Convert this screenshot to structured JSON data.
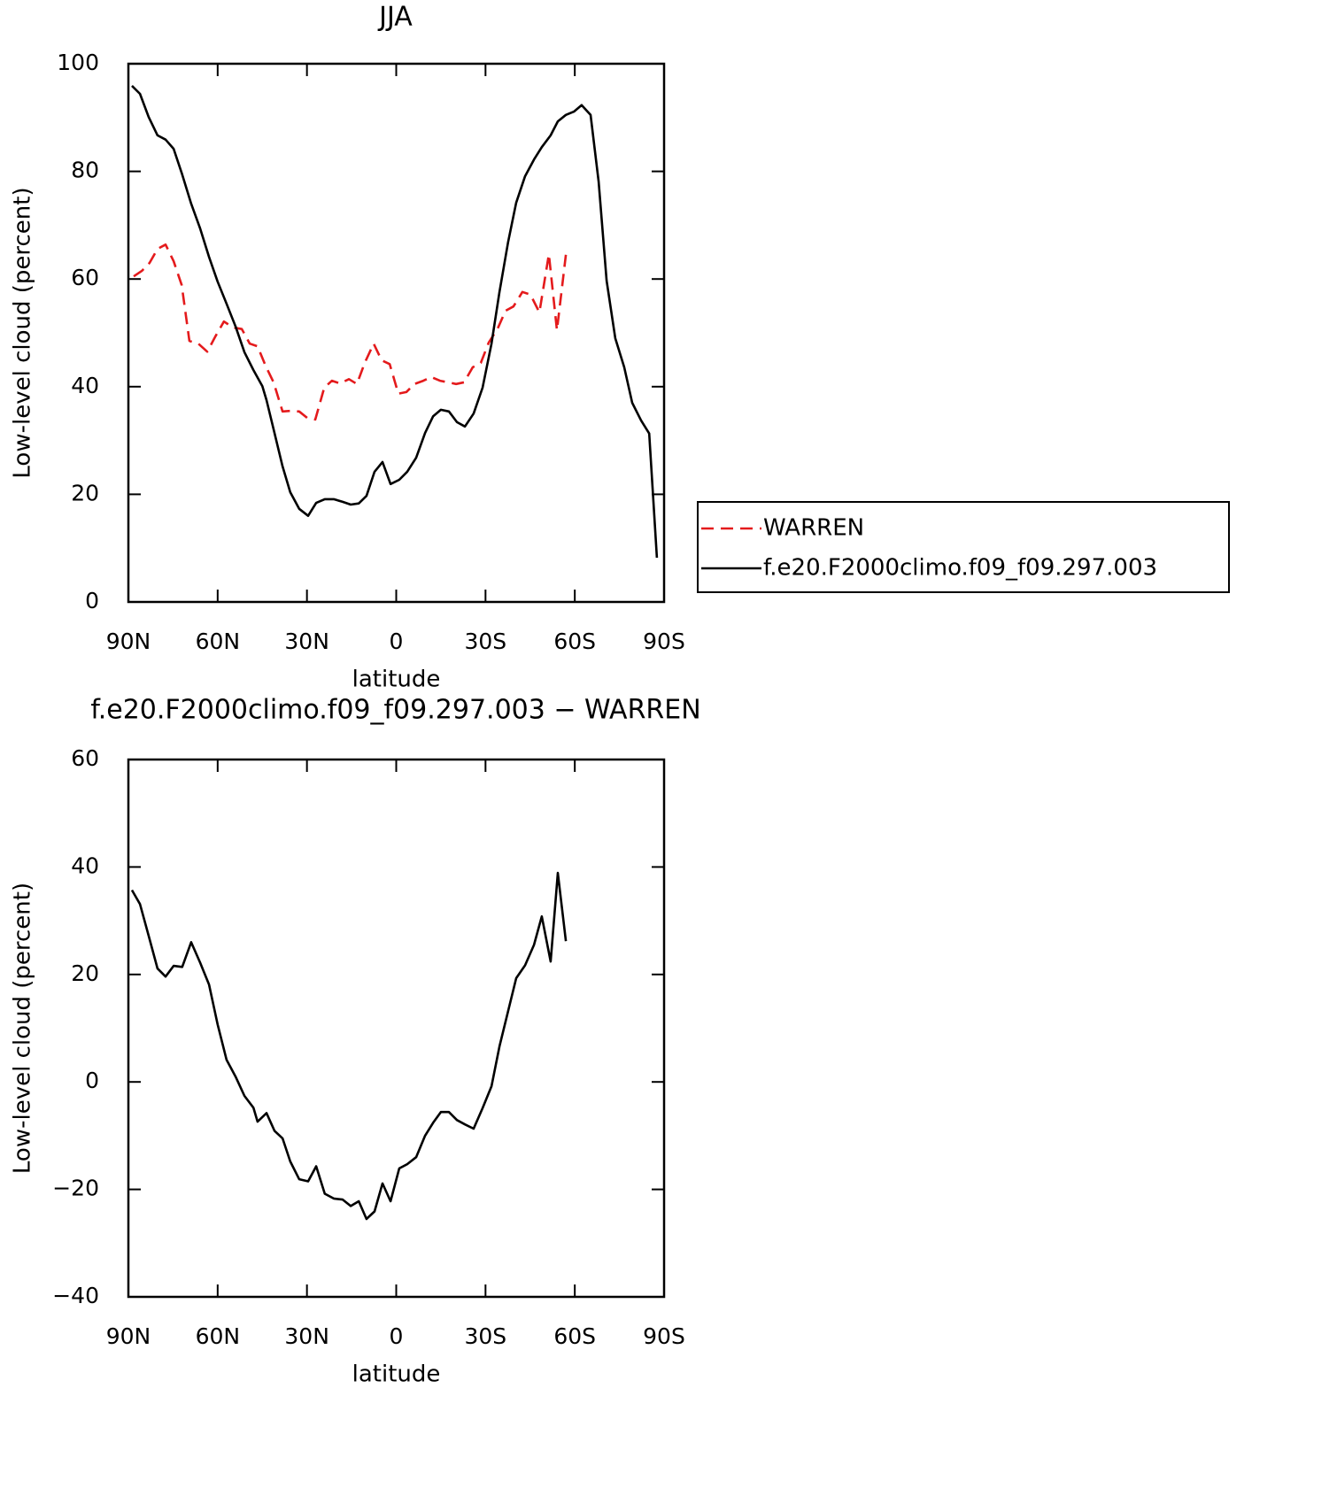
{
  "chart_data": [
    {
      "type": "line",
      "title": "JJA",
      "x_label": "latitude",
      "y_label": "Low-level cloud (percent)",
      "xlim": [
        90,
        -90
      ],
      "xticks": [
        {
          "value": 90,
          "label": "90N"
        },
        {
          "value": 60,
          "label": "60N"
        },
        {
          "value": 30,
          "label": "30N"
        },
        0,
        {
          "value": -30,
          "label": "30S"
        },
        {
          "value": -60,
          "label": "60S"
        },
        {
          "value": -90,
          "label": "90S"
        }
      ],
      "ylim": [
        0,
        100
      ],
      "yticks": [
        0,
        20,
        40,
        60,
        80,
        100
      ],
      "legend": "right",
      "series": [
        {
          "name": "WARREN",
          "color": "#e41a1c",
          "dashed": true,
          "x": [
            88.2,
            85.5,
            82.9,
            80.2,
            77.5,
            74.8,
            72.1,
            69.5,
            66.5,
            63.5,
            60.8,
            57.9,
            54.9,
            51.9,
            49.2,
            46.6,
            43.9,
            41.2,
            38.2,
            35.6,
            32.6,
            29.9,
            27.2,
            24.2,
            21.6,
            18.9,
            15.9,
            13.2,
            10.6,
            7.6,
            4.9,
            2.2,
            -0.7,
            -3.4,
            -6.1,
            -9.1,
            -11.8,
            -14.7,
            -17.4,
            -20.1,
            -22.8,
            -25.7,
            -28.4,
            -31.1,
            -34.1,
            -36.7,
            -39.4,
            -42.4,
            -45.1,
            -48.1,
            -51.3,
            -54.0,
            -57.0
          ],
          "values": [
            60.5,
            61.5,
            63.0,
            65.6,
            66.4,
            63.3,
            58.9,
            48.5,
            48.0,
            46.5,
            49.3,
            52.1,
            51.0,
            50.7,
            48.0,
            47.5,
            43.9,
            40.8,
            35.4,
            35.5,
            35.4,
            34.2,
            33.9,
            39.8,
            41.1,
            40.6,
            41.4,
            40.5,
            44.4,
            48.0,
            44.9,
            44.2,
            38.7,
            39.0,
            40.5,
            41.1,
            41.8,
            41.1,
            40.8,
            40.5,
            40.8,
            43.6,
            44.4,
            48.2,
            50.8,
            54.1,
            54.9,
            57.6,
            57.1,
            53.8,
            64.6,
            50.5,
            64.5
          ]
        },
        {
          "name": "f.e20.F2000climo.f09_f09.297.003",
          "color": "#000000",
          "dashed": false,
          "x": [
            88.8,
            86.1,
            83.2,
            80.2,
            77.5,
            74.8,
            71.9,
            68.9,
            65.9,
            62.9,
            60.0,
            57.0,
            54.0,
            51.0,
            48.0,
            45.0,
            43.6,
            40.9,
            38.2,
            35.6,
            32.6,
            29.6,
            26.9,
            24.0,
            21.0,
            18.0,
            15.3,
            12.6,
            10.0,
            7.3,
            4.6,
            1.9,
            -1.0,
            -3.7,
            -6.7,
            -9.7,
            -12.4,
            -15.0,
            -17.7,
            -20.4,
            -23.1,
            -26.0,
            -29.0,
            -32.0,
            -34.7,
            -37.6,
            -40.3,
            -43.3,
            -46.3,
            -48.9,
            -51.9,
            -54.3,
            -57.0,
            -59.7,
            -62.3,
            -65.3,
            -68.0,
            -70.7,
            -73.6,
            -76.6,
            -79.3,
            -82.3,
            -85.0,
            -87.6
          ],
          "values": [
            95.9,
            94.4,
            90.1,
            86.7,
            85.9,
            84.2,
            79.4,
            74.0,
            69.4,
            64.1,
            59.5,
            55.4,
            51.2,
            46.4,
            43.1,
            40.1,
            37.5,
            31.4,
            25.2,
            20.4,
            17.3,
            16.0,
            18.4,
            19.1,
            19.1,
            18.6,
            18.1,
            18.3,
            19.7,
            24.2,
            26.0,
            21.9,
            22.7,
            24.2,
            26.8,
            31.4,
            34.5,
            35.7,
            35.4,
            33.4,
            32.6,
            35.0,
            39.8,
            48.0,
            57.6,
            66.9,
            74.2,
            79.1,
            82.2,
            84.5,
            86.7,
            89.3,
            90.5,
            91.1,
            92.3,
            90.5,
            78.1,
            59.7,
            49.0,
            43.6,
            37.0,
            33.7,
            31.3,
            8.2
          ]
        }
      ]
    },
    {
      "type": "line",
      "title": "f.e20.F2000climo.f09_f09.297.003 − WARREN",
      "x_label": "latitude",
      "y_label": "Low-level cloud (percent)",
      "xlim": [
        90,
        -90
      ],
      "xticks": [
        {
          "value": 90,
          "label": "90N"
        },
        {
          "value": 60,
          "label": "60N"
        },
        {
          "value": 30,
          "label": "30N"
        },
        0,
        {
          "value": -30,
          "label": "30S"
        },
        {
          "value": -60,
          "label": "60S"
        },
        {
          "value": -90,
          "label": "90S"
        }
      ],
      "ylim": [
        -40,
        60
      ],
      "yticks": [
        {
          "value": -40,
          "label": "−40"
        },
        {
          "value": -20,
          "label": "−20"
        },
        0,
        20,
        40,
        60
      ],
      "color": "#000000",
      "x": [
        88.8,
        86.1,
        83.2,
        80.2,
        77.5,
        74.8,
        71.9,
        68.9,
        65.9,
        62.9,
        60.0,
        57.0,
        54.0,
        51.0,
        48.0,
        46.6,
        43.6,
        40.9,
        38.2,
        35.6,
        32.6,
        29.6,
        26.9,
        24.0,
        21.0,
        18.0,
        15.3,
        12.6,
        10.0,
        7.3,
        4.6,
        1.9,
        -1.0,
        -3.7,
        -6.7,
        -9.7,
        -12.4,
        -15.0,
        -17.7,
        -20.4,
        -23.1,
        -26.0,
        -29.0,
        -32.0,
        -34.7,
        -37.6,
        -40.3,
        -43.3,
        -46.3,
        -48.9,
        -51.9,
        -54.3,
        -57.0
      ],
      "values": [
        35.7,
        33.1,
        27.2,
        21.1,
        19.6,
        21.6,
        21.4,
        26.0,
        22.2,
        18.1,
        10.7,
        4.1,
        1.0,
        -2.6,
        -4.8,
        -7.4,
        -5.8,
        -9.1,
        -10.5,
        -14.8,
        -18.1,
        -18.5,
        -15.7,
        -20.8,
        -21.7,
        -21.9,
        -23.1,
        -22.2,
        -25.5,
        -24.1,
        -18.9,
        -22.2,
        -16.1,
        -15.3,
        -14.0,
        -10.0,
        -7.6,
        -5.6,
        -5.6,
        -7.1,
        -7.9,
        -8.7,
        -4.9,
        -0.8,
        6.6,
        13.2,
        19.3,
        21.7,
        25.5,
        30.8,
        22.4,
        38.9,
        26.2
      ]
    }
  ]
}
